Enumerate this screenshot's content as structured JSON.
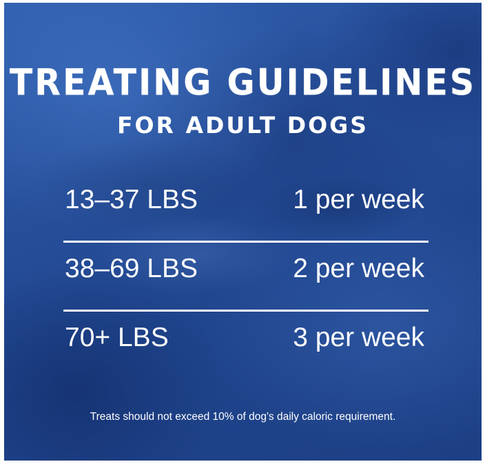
{
  "header": {
    "title": "TREATING GUIDELINES",
    "subtitle": "FOR ADULT DOGS"
  },
  "guidelines": [
    {
      "weight": "13–37 LBS",
      "frequency": "1 per week"
    },
    {
      "weight": "38–69 LBS",
      "frequency": "2 per week"
    },
    {
      "weight": "70+ LBS",
      "frequency": "3 per week"
    }
  ],
  "footnote": "Treats should not exceed 10% of dog's daily caloric requirement.",
  "colors": {
    "background": "#274f9a",
    "text": "#ffffff"
  }
}
